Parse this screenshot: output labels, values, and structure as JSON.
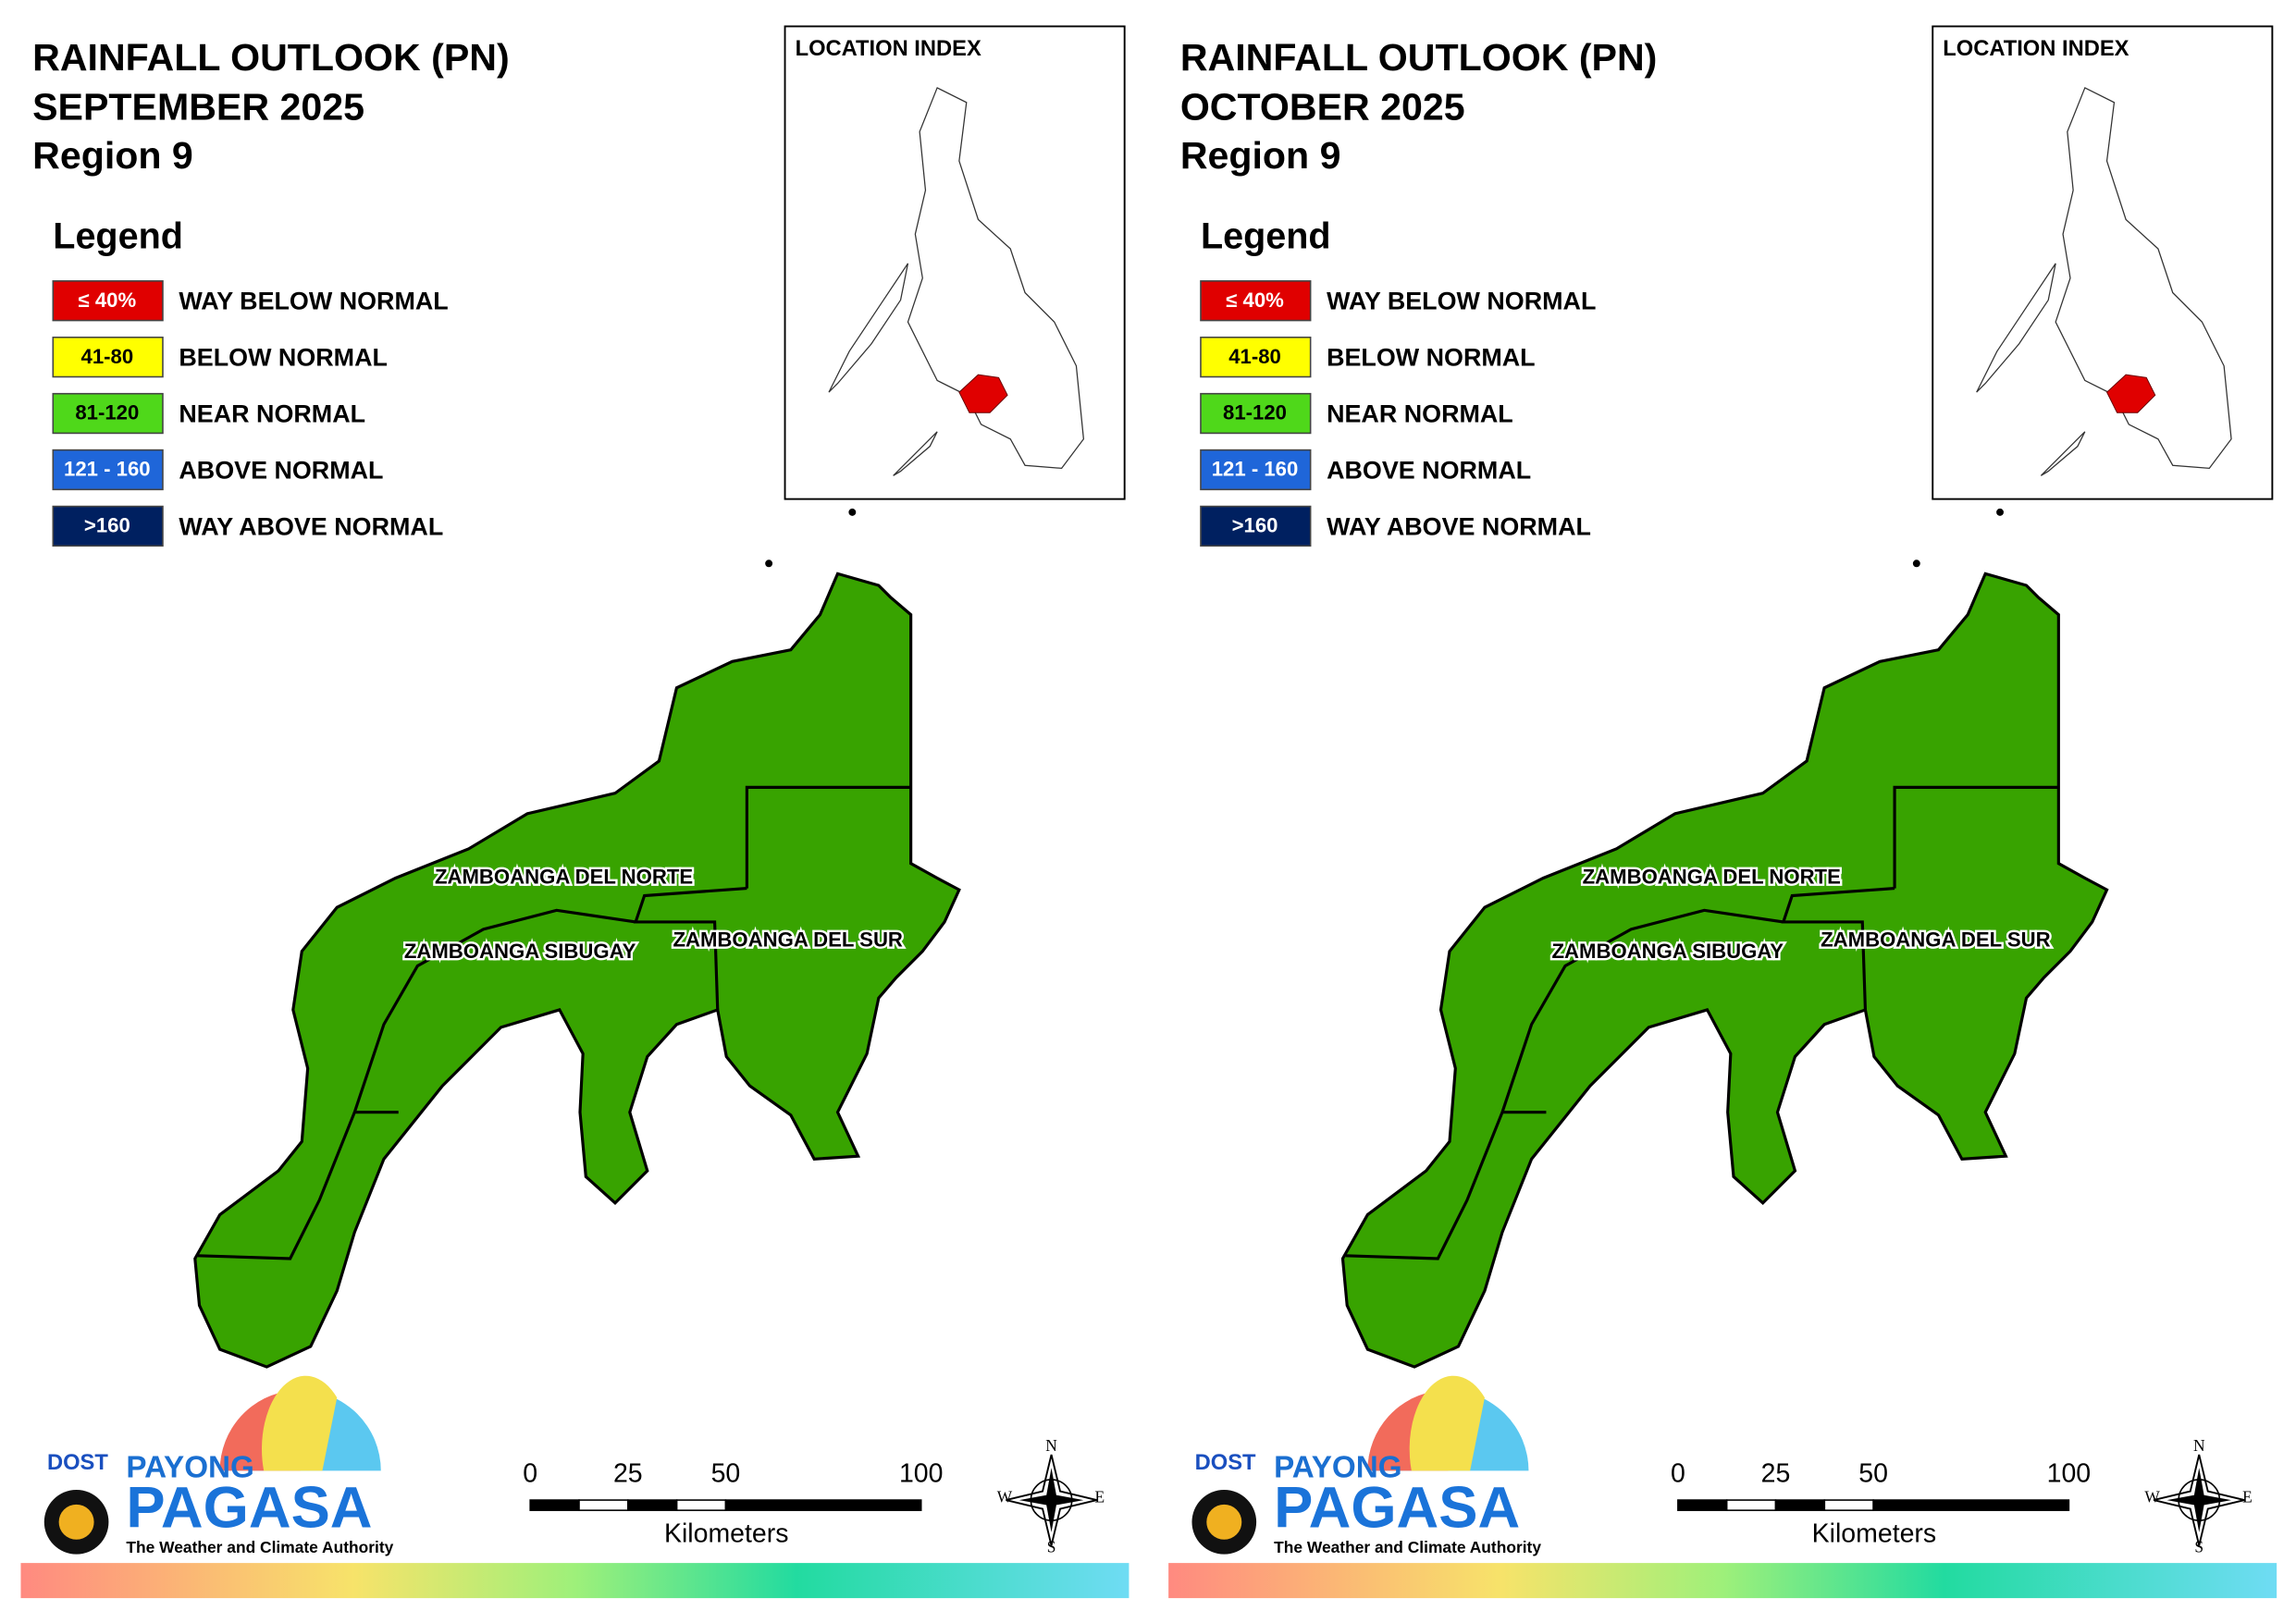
{
  "panels": [
    {
      "title": "RAINFALL OUTLOOK (PN)",
      "month": "SEPTEMBER 2025",
      "region": "Region 9",
      "legend_title": "Legend",
      "legend": [
        {
          "range": "≤ 40%",
          "label": "WAY BELOW NORMAL",
          "color": "#e00000"
        },
        {
          "range": "41-80",
          "label": "BELOW NORMAL",
          "color": "#ffff00"
        },
        {
          "range": "81-120",
          "label": "NEAR NORMAL",
          "color": "#4fd81a"
        },
        {
          "range": "121 - 160",
          "label": "ABOVE NORMAL",
          "color": "#1f66d9"
        },
        {
          "range": ">160",
          "label": "WAY ABOVE NORMAL",
          "color": "#002060"
        }
      ],
      "location_index": "LOCATION INDEX",
      "provinces": [
        "ZAMBOANGA DEL NORTE",
        "ZAMBOANGA SIBUGAY",
        "ZAMBOANGA DEL SUR"
      ],
      "scale": {
        "ticks": [
          0,
          25,
          50,
          100
        ],
        "unit": "Kilometers"
      },
      "compass": [
        "N",
        "E",
        "S",
        "W"
      ],
      "logo": {
        "agency": "DOST",
        "brand_top": "PAYONG",
        "brand": "PAGASA",
        "tagline": "The Weather and Climate Authority"
      }
    },
    {
      "title": "RAINFALL OUTLOOK (PN)",
      "month": "OCTOBER 2025",
      "region": "Region 9",
      "legend_title": "Legend",
      "legend": [
        {
          "range": "≤ 40%",
          "label": "WAY BELOW NORMAL",
          "color": "#e00000"
        },
        {
          "range": "41-80",
          "label": "BELOW NORMAL",
          "color": "#ffff00"
        },
        {
          "range": "81-120",
          "label": "NEAR NORMAL",
          "color": "#4fd81a"
        },
        {
          "range": "121 - 160",
          "label": "ABOVE NORMAL",
          "color": "#1f66d9"
        },
        {
          "range": ">160",
          "label": "WAY ABOVE NORMAL",
          "color": "#002060"
        }
      ],
      "location_index": "LOCATION INDEX",
      "provinces": [
        "ZAMBOANGA DEL NORTE",
        "ZAMBOANGA SIBUGAY",
        "ZAMBOANGA DEL SUR"
      ],
      "scale": {
        "ticks": [
          0,
          25,
          50,
          100
        ],
        "unit": "Kilometers"
      },
      "compass": [
        "N",
        "E",
        "S",
        "W"
      ],
      "logo": {
        "agency": "DOST",
        "brand_top": "PAYONG",
        "brand": "PAGASA",
        "tagline": "The Weather and Climate Authority"
      }
    }
  ]
}
